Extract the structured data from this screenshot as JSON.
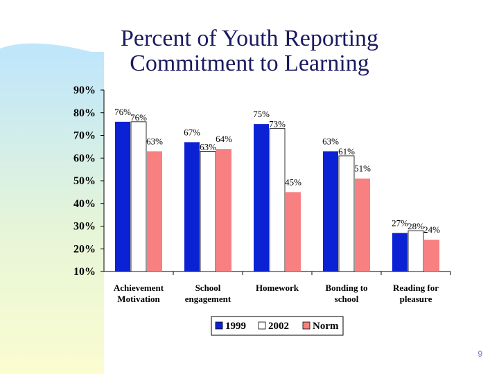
{
  "slide": {
    "page_number": "9"
  },
  "colors": {
    "series_1999": "#0a22d4",
    "series_2002": "#ffffff",
    "series_norm": "#f88080",
    "title": "#1a1a60"
  },
  "chart_data": {
    "type": "bar",
    "title": "Percent of Youth Reporting Commitment to Learning",
    "title_lines": [
      "Percent of Youth Reporting",
      "Commitment to Learning"
    ],
    "categories": [
      [
        "Achievement",
        "Motivation"
      ],
      [
        "School",
        "engagement"
      ],
      [
        "Homework"
      ],
      [
        "Bonding to",
        "school"
      ],
      [
        "Reading for",
        "pleasure"
      ]
    ],
    "series": [
      {
        "name": "1999",
        "values": [
          76,
          67,
          75,
          63,
          27
        ]
      },
      {
        "name": "2002",
        "values": [
          76,
          63,
          73,
          61,
          28
        ]
      },
      {
        "name": "Norm",
        "values": [
          63,
          64,
          45,
          51,
          24
        ]
      }
    ],
    "y_ticks": [
      "10%",
      "20%",
      "30%",
      "40%",
      "50%",
      "60%",
      "70%",
      "80%",
      "90%"
    ],
    "ylim": [
      10,
      90
    ],
    "legend_position": "bottom",
    "grid": false
  }
}
